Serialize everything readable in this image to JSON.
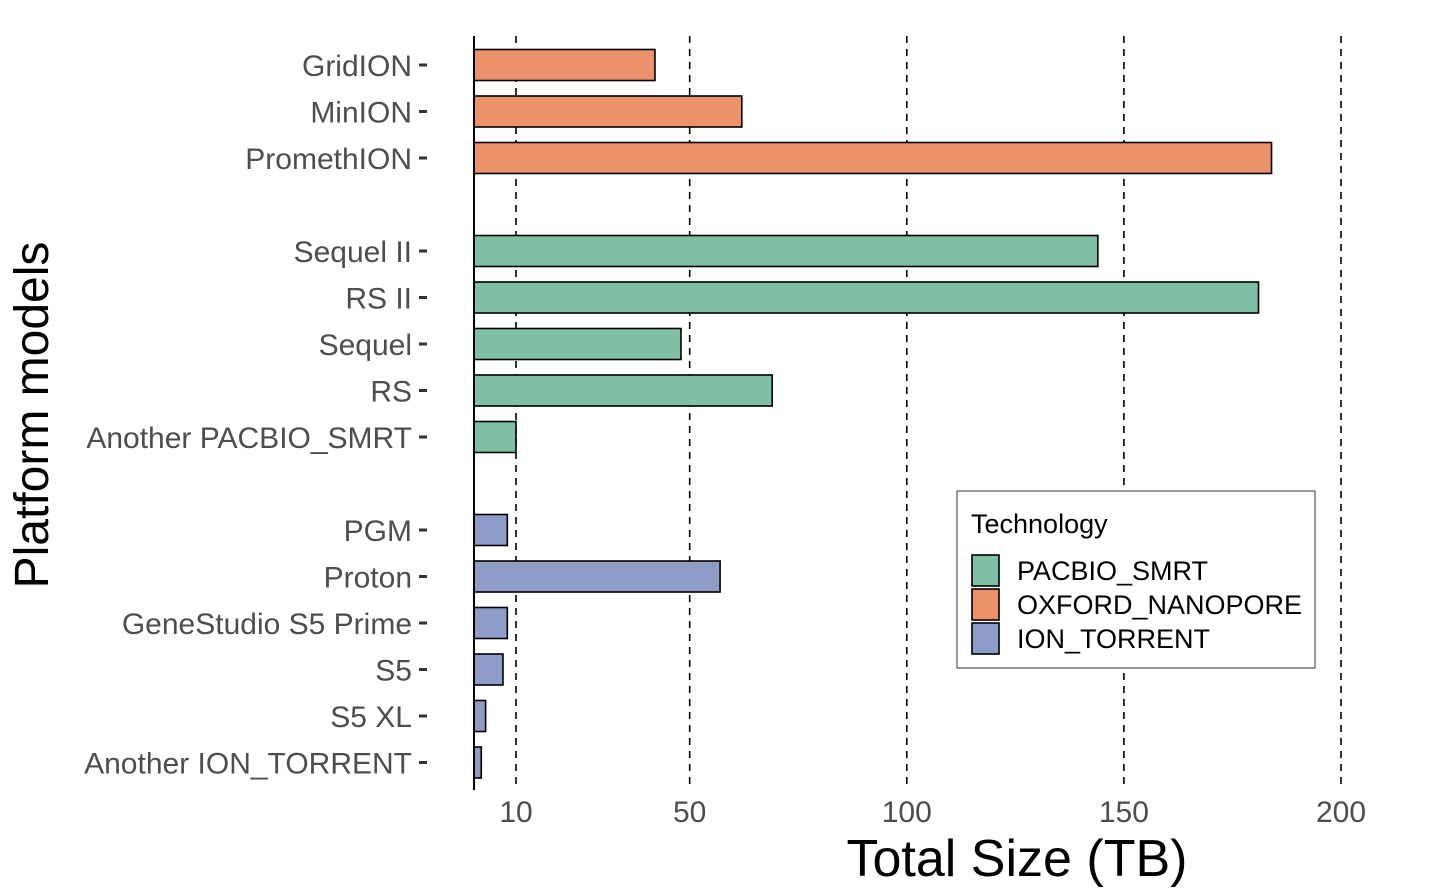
{
  "chart_data": {
    "type": "bar",
    "orientation": "horizontal",
    "xlabel": "Total Size (TB)",
    "ylabel": "Platform models",
    "x_ticks": [
      10,
      50,
      100,
      150,
      200
    ],
    "xlim": [
      0,
      210
    ],
    "grid": "vertical dashed at x ticks",
    "legend": {
      "title": "Technology",
      "placement": "bottom-right",
      "entries": [
        {
          "name": "PACBIO_SMRT",
          "color": "#7fbfa3"
        },
        {
          "name": "OXFORD_NANOPORE",
          "color": "#ec926b"
        },
        {
          "name": "ION_TORRENT",
          "color": "#8f9cc7"
        }
      ]
    },
    "groups": [
      {
        "technology": "OXFORD_NANOPORE",
        "color": "#ec926b",
        "bars": [
          {
            "label": "GridION",
            "value": 42
          },
          {
            "label": "MinION",
            "value": 62
          },
          {
            "label": "PromethION",
            "value": 184
          }
        ]
      },
      {
        "technology": "PACBIO_SMRT",
        "color": "#7fbfa3",
        "bars": [
          {
            "label": "Sequel II",
            "value": 144
          },
          {
            "label": "RS II",
            "value": 181
          },
          {
            "label": "Sequel",
            "value": 48
          },
          {
            "label": "RS",
            "value": 69
          },
          {
            "label": "Another PACBIO_SMRT",
            "value": 10
          }
        ]
      },
      {
        "technology": "ION_TORRENT",
        "color": "#8f9cc7",
        "bars": [
          {
            "label": "PGM",
            "value": 8
          },
          {
            "label": "Proton",
            "value": 57
          },
          {
            "label": "GeneStudio S5 Prime",
            "value": 8
          },
          {
            "label": "S5",
            "value": 7
          },
          {
            "label": "S5 XL",
            "value": 3
          },
          {
            "label": "Another ION_TORRENT",
            "value": 2
          }
        ]
      }
    ]
  }
}
